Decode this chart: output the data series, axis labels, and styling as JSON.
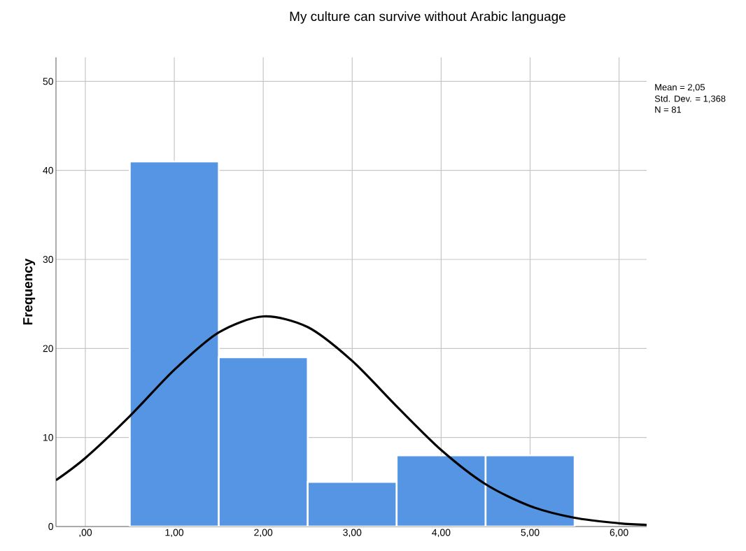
{
  "chart_data": {
    "type": "histogram",
    "title": "My culture can survive without Arabic language",
    "ylabel": "Frequency",
    "annotations": [
      "Mean = 2,05",
      "Std. Dev. = 1,368",
      "N = 81"
    ],
    "series": [
      {
        "bins": [
          0.5,
          1.5,
          2.5,
          3.5,
          4.5,
          5.5
        ],
        "values": [
          41,
          19,
          5,
          8,
          8
        ],
        "color": "#5595e3"
      },
      {
        "type": "line",
        "color": "#000000",
        "x": [
          -0.33,
          0,
          0.5,
          1,
          1.5,
          2,
          2.5,
          3,
          3.5,
          4,
          4.5,
          5,
          5.5,
          6,
          6.31
        ],
        "values": [
          5.2,
          7.7,
          12.4,
          17.6,
          21.8,
          23.6,
          22.4,
          18.6,
          13.5,
          8.6,
          4.75,
          2.3,
          0.98,
          0.37,
          0.19
        ]
      }
    ],
    "xlim": [
      -0.33,
      6.31
    ],
    "ylim": [
      0,
      52.7
    ],
    "xticks": [
      {
        "value": 0,
        "label": ",00"
      },
      {
        "value": 1,
        "label": "1,00"
      },
      {
        "value": 2,
        "label": "2,00"
      },
      {
        "value": 3,
        "label": "3,00"
      },
      {
        "value": 4,
        "label": "4,00"
      },
      {
        "value": 5,
        "label": "5,00"
      },
      {
        "value": 6,
        "label": "6,00"
      }
    ],
    "yticks": [
      0,
      10,
      20,
      30,
      40,
      50
    ],
    "grid": true
  }
}
